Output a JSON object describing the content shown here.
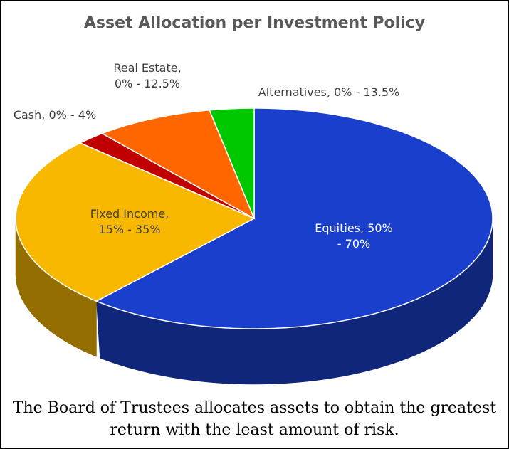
{
  "chart_data": {
    "type": "pie",
    "title": "Asset Allocation per Investment Policy",
    "categories": [
      "Equities, 50% - 70%",
      "Fixed Income, 15% - 35%",
      "Cash, 0% - 4%",
      "Real Estate, 0% - 12.5%",
      "Alternatives, 0% - 13.5%"
    ],
    "values": [
      61.5,
      25.5,
      2,
      8,
      3
    ],
    "colors": [
      "#1a3fcc",
      "#f9b800",
      "#c00000",
      "#ff6600",
      "#00c800"
    ],
    "caption": "The Board of Trustees allocates assets to obtain the greatest return with the least amount of risk."
  }
}
